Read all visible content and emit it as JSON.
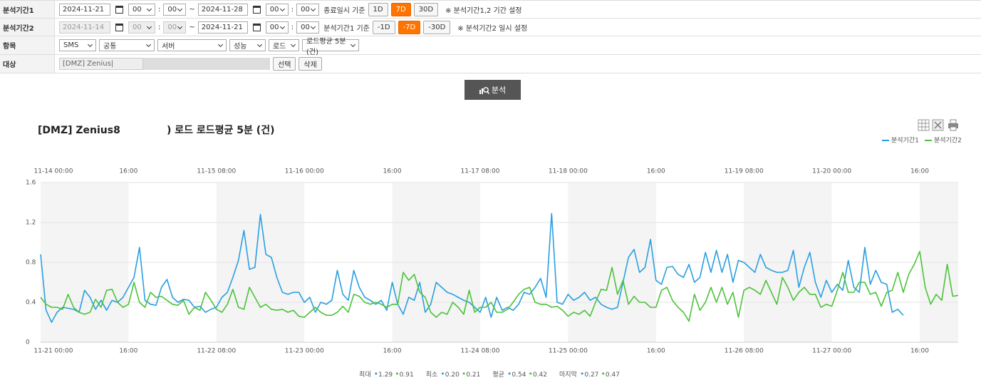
{
  "form": {
    "colon": ":",
    "tilde": "~",
    "period1": {
      "label": "분석기간1",
      "start_date": "2024-11-21",
      "start_hour": "00",
      "start_min": "00",
      "end_date": "2024-11-28",
      "end_hour": "00",
      "end_min": "00",
      "basis": "종료일시 기준",
      "buttons": [
        "1D",
        "7D",
        "30D"
      ],
      "active": "7D",
      "note": "※ 분석기간1,2 기간 설정"
    },
    "period2": {
      "label": "분석기간2",
      "start_date": "2024-11-14",
      "start_hour": "00",
      "start_min": "00",
      "end_date": "2024-11-21",
      "end_hour": "00",
      "end_min": "00",
      "basis": "분석기간1 기준",
      "buttons": [
        "-1D",
        "-7D",
        "-30D"
      ],
      "active": "-7D",
      "note": "※ 분석기간2 일시 설정"
    },
    "item": {
      "label": "항목",
      "selects": [
        "SMS",
        "공통",
        "서버",
        "성능",
        "로드",
        "로드평균 5분 (건)"
      ]
    },
    "target": {
      "label": "대상",
      "value": "[DMZ] Zenius|",
      "buttons": [
        "선택",
        "삭제"
      ]
    },
    "analyze_button": "분석"
  },
  "chart_data": {
    "type": "line",
    "title": [
      "[DMZ] Zenius8",
      ") 로드 로드평균 5분 (건)"
    ],
    "ylim": [
      0,
      1.6
    ],
    "yticks": [
      0,
      0.4,
      0.8,
      1.2,
      1.6
    ],
    "grid": true,
    "legend": "top-right",
    "categories": [
      "11-21 00:00",
      null,
      null,
      null,
      null,
      null,
      null,
      null,
      null,
      null,
      null,
      null,
      null,
      null,
      null,
      null,
      "16:00",
      null,
      null,
      null,
      null,
      null,
      null,
      null,
      null,
      null,
      null,
      null,
      null,
      null,
      null,
      null,
      "11-22 08:00",
      null,
      null,
      null,
      null,
      null,
      null,
      null,
      null,
      null,
      null,
      null,
      null,
      null,
      null,
      null,
      "11-23 00:00",
      null,
      null,
      null,
      null,
      null,
      null,
      null,
      null,
      null,
      null,
      null,
      null,
      null,
      null,
      null,
      "16:00",
      null,
      null,
      null,
      null,
      null,
      null,
      null,
      null,
      null,
      null,
      null,
      null,
      null,
      null,
      null,
      "11-24 08:00",
      null,
      null,
      null,
      null,
      null,
      null,
      null,
      null,
      null,
      null,
      null,
      null,
      null,
      null,
      null,
      "11-25 00:00",
      null,
      null,
      null,
      null,
      null,
      null,
      null,
      null,
      null,
      null,
      null,
      null,
      null,
      null,
      null,
      "16:00",
      null,
      null,
      null,
      null,
      null,
      null,
      null,
      null,
      null,
      null,
      null,
      null,
      null,
      null,
      null,
      "11-26 08:00",
      null,
      null,
      null,
      null,
      null,
      null,
      null,
      null,
      null,
      null,
      null,
      null,
      null,
      null,
      null,
      "11-27 00:00",
      null,
      null,
      null,
      null,
      null,
      null,
      null,
      null,
      null,
      null,
      null,
      null,
      null,
      null,
      null,
      "16:00",
      null,
      null,
      null,
      null,
      null,
      null,
      null
    ],
    "x2_categories": [
      "11-14 00:00",
      null,
      null,
      null,
      null,
      null,
      null,
      null,
      null,
      null,
      null,
      null,
      null,
      null,
      null,
      null,
      "16:00",
      null,
      null,
      null,
      null,
      null,
      null,
      null,
      null,
      null,
      null,
      null,
      null,
      null,
      null,
      null,
      "11-15 08:00",
      null,
      null,
      null,
      null,
      null,
      null,
      null,
      null,
      null,
      null,
      null,
      null,
      null,
      null,
      null,
      "11-16 00:00",
      null,
      null,
      null,
      null,
      null,
      null,
      null,
      null,
      null,
      null,
      null,
      null,
      null,
      null,
      null,
      "16:00",
      null,
      null,
      null,
      null,
      null,
      null,
      null,
      null,
      null,
      null,
      null,
      null,
      null,
      null,
      null,
      "11-17 08:00",
      null,
      null,
      null,
      null,
      null,
      null,
      null,
      null,
      null,
      null,
      null,
      null,
      null,
      null,
      null,
      "11-18 00:00",
      null,
      null,
      null,
      null,
      null,
      null,
      null,
      null,
      null,
      null,
      null,
      null,
      null,
      null,
      null,
      "16:00",
      null,
      null,
      null,
      null,
      null,
      null,
      null,
      null,
      null,
      null,
      null,
      null,
      null,
      null,
      null,
      "11-19 08:00",
      null,
      null,
      null,
      null,
      null,
      null,
      null,
      null,
      null,
      null,
      null,
      null,
      null,
      null,
      null,
      "11-20 00:00",
      null,
      null,
      null,
      null,
      null,
      null,
      null,
      null,
      null,
      null,
      null,
      null,
      null,
      null,
      null,
      "16:00",
      null,
      null,
      null,
      null,
      null,
      null,
      null
    ],
    "series": [
      {
        "name": "분석기간1",
        "color": "#2a9fe0",
        "values": [
          0.88,
          0.32,
          0.2,
          0.3,
          0.35,
          0.34,
          0.33,
          0.3,
          0.52,
          0.45,
          0.33,
          0.42,
          0.32,
          0.42,
          0.4,
          0.45,
          0.55,
          0.65,
          0.95,
          0.42,
          0.38,
          0.37,
          0.55,
          0.63,
          0.45,
          0.4,
          0.43,
          0.42,
          0.35,
          0.36,
          0.3,
          0.33,
          0.35,
          0.45,
          0.5,
          0.65,
          0.82,
          1.12,
          0.73,
          0.75,
          1.28,
          0.88,
          0.85,
          0.65,
          0.5,
          0.48,
          0.5,
          0.5,
          0.4,
          0.45,
          0.3,
          0.4,
          0.38,
          0.42,
          0.72,
          0.48,
          0.42,
          0.72,
          0.55,
          0.45,
          0.42,
          0.38,
          0.42,
          0.32,
          0.6,
          0.38,
          0.28,
          0.45,
          0.42,
          0.6,
          0.3,
          0.38,
          0.6,
          0.55,
          0.5,
          0.48,
          0.45,
          0.42,
          0.4,
          0.35,
          0.3,
          0.45,
          0.25,
          0.45,
          0.32,
          0.35,
          0.32,
          0.38,
          0.5,
          0.48,
          0.55,
          0.64,
          0.45,
          1.29,
          0.4,
          0.38,
          0.48,
          0.42,
          0.45,
          0.5,
          0.42,
          0.45,
          0.38,
          0.35,
          0.33,
          0.35,
          0.6,
          0.85,
          0.93,
          0.7,
          0.75,
          1.03,
          0.62,
          0.58,
          0.75,
          0.76,
          0.68,
          0.65,
          0.78,
          0.6,
          0.65,
          0.9,
          0.7,
          0.92,
          0.7,
          0.88,
          0.6,
          0.82,
          0.8,
          0.75,
          0.7,
          0.88,
          0.75,
          0.72,
          0.7,
          0.7,
          0.72,
          0.92,
          0.55,
          0.75,
          0.9,
          0.6,
          0.45,
          0.62,
          0.5,
          0.58,
          0.52,
          0.82,
          0.55,
          0.5,
          0.95,
          0.58,
          0.72,
          0.6,
          0.58,
          0.3,
          0.33,
          0.27,
          null,
          null,
          null,
          null,
          null,
          null,
          null,
          null,
          null,
          null
        ]
      },
      {
        "name": "분석기간2",
        "color": "#4cc23a",
        "values": [
          0.45,
          0.38,
          0.35,
          0.35,
          0.33,
          0.48,
          0.35,
          0.3,
          0.28,
          0.3,
          0.43,
          0.35,
          0.52,
          0.53,
          0.4,
          0.35,
          0.38,
          0.6,
          0.4,
          0.35,
          0.5,
          0.45,
          0.46,
          0.42,
          0.38,
          0.37,
          0.42,
          0.28,
          0.35,
          0.32,
          0.5,
          0.42,
          0.33,
          0.3,
          0.38,
          0.53,
          0.35,
          0.33,
          0.55,
          0.45,
          0.35,
          0.38,
          0.33,
          0.32,
          0.33,
          0.3,
          0.32,
          0.26,
          0.25,
          0.3,
          0.35,
          0.3,
          0.27,
          0.27,
          0.3,
          0.36,
          0.3,
          0.48,
          0.46,
          0.4,
          0.38,
          0.4,
          0.38,
          0.35,
          0.38,
          0.38,
          0.7,
          0.62,
          0.68,
          0.5,
          0.45,
          0.3,
          0.25,
          0.3,
          0.28,
          0.4,
          0.35,
          0.28,
          0.52,
          0.3,
          0.35,
          0.35,
          0.4,
          0.3,
          0.3,
          0.33,
          0.4,
          0.48,
          0.53,
          0.55,
          0.4,
          0.38,
          0.38,
          0.35,
          0.36,
          0.32,
          0.26,
          0.3,
          0.28,
          0.32,
          0.26,
          0.4,
          0.53,
          0.52,
          0.75,
          0.48,
          0.62,
          0.38,
          0.46,
          0.4,
          0.4,
          0.35,
          0.35,
          0.52,
          0.55,
          0.42,
          0.35,
          0.3,
          0.21,
          0.48,
          0.32,
          0.4,
          0.55,
          0.4,
          0.55,
          0.38,
          0.5,
          0.25,
          0.52,
          0.55,
          0.52,
          0.48,
          0.62,
          0.5,
          0.38,
          0.65,
          0.55,
          0.42,
          0.5,
          0.55,
          0.48,
          0.48,
          0.35,
          0.38,
          0.36,
          0.52,
          0.7,
          0.5,
          0.5,
          0.6,
          0.6,
          0.48,
          0.5,
          0.36,
          0.5,
          0.52,
          0.7,
          0.5,
          0.68,
          0.78,
          0.91,
          0.55,
          0.38,
          0.48,
          0.42,
          0.78,
          0.46,
          0.47
        ]
      }
    ],
    "summary": [
      {
        "label": "최대",
        "values": [
          "1.29",
          "0.91"
        ]
      },
      {
        "label": "최소",
        "values": [
          "0.20",
          "0.21"
        ]
      },
      {
        "label": "평균",
        "values": [
          "0.54",
          "0.42"
        ]
      },
      {
        "label": "마지막",
        "values": [
          "0.27",
          "0.47"
        ]
      }
    ]
  }
}
